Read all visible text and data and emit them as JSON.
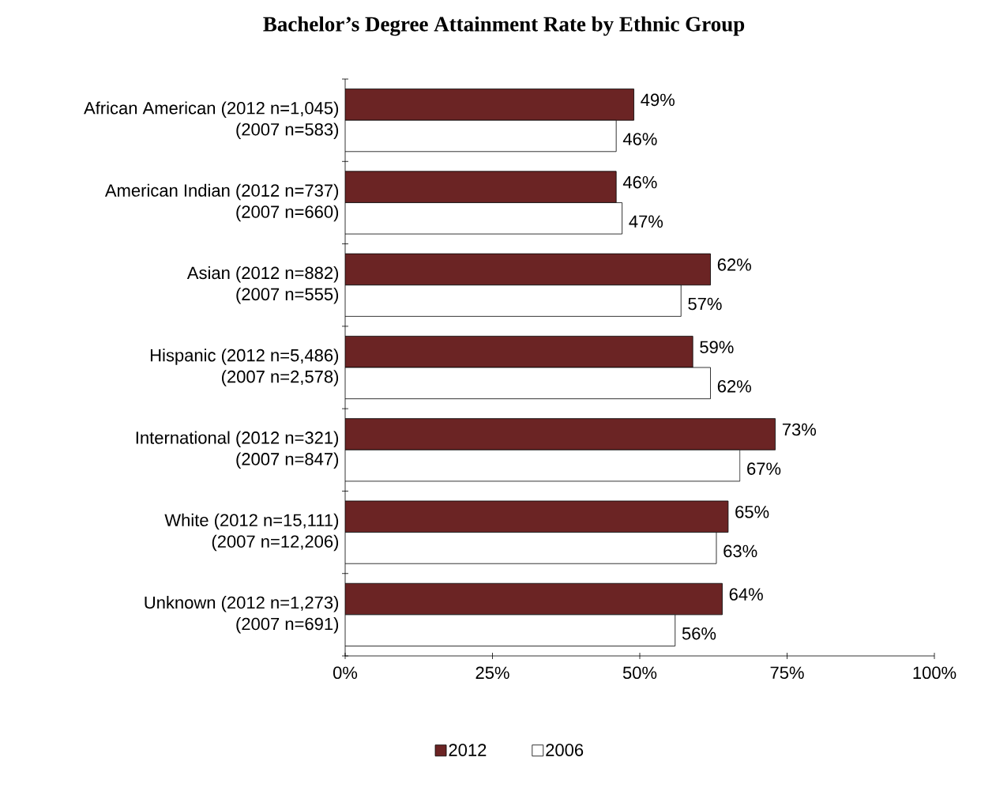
{
  "chart_data": {
    "type": "bar",
    "orientation": "horizontal",
    "title": "Bachelor’s Degree Attainment Rate by Ethnic Group",
    "categories": [
      "African American (2012 n=1,045)\n(2007 n=583)",
      "American Indian (2012 n=737)\n(2007 n=660)",
      "Asian (2012 n=882)\n(2007 n=555)",
      "Hispanic  (2012 n=5,486)\n(2007 n=2,578)",
      "International (2012 n=321)\n(2007 n=847)",
      "White (2012 n=15,111)\n(2007 n=12,206)",
      "Unknown (2012 n=1,273)\n(2007 n=691)"
    ],
    "series": [
      {
        "name": "2012",
        "color": "#6b2424",
        "values": [
          49,
          46,
          62,
          59,
          73,
          65,
          64
        ],
        "value_labels": [
          "49%",
          "46%",
          "62%",
          "59%",
          "73%",
          "65%",
          "64%"
        ]
      },
      {
        "name": "2006",
        "color": "#ffffff",
        "values": [
          46,
          47,
          57,
          62,
          67,
          63,
          56
        ],
        "value_labels": [
          "46%",
          "47%",
          "57%",
          "62%",
          "67%",
          "63%",
          "56%"
        ]
      }
    ],
    "xlim": [
      0,
      100
    ],
    "xticks": [
      {
        "value": 0,
        "label": "0%"
      },
      {
        "value": 25,
        "label": "25%"
      },
      {
        "value": 50,
        "label": "50%"
      },
      {
        "value": 75,
        "label": "75%"
      },
      {
        "value": 100,
        "label": "100%"
      }
    ],
    "grid": false,
    "legend": "bottom"
  }
}
